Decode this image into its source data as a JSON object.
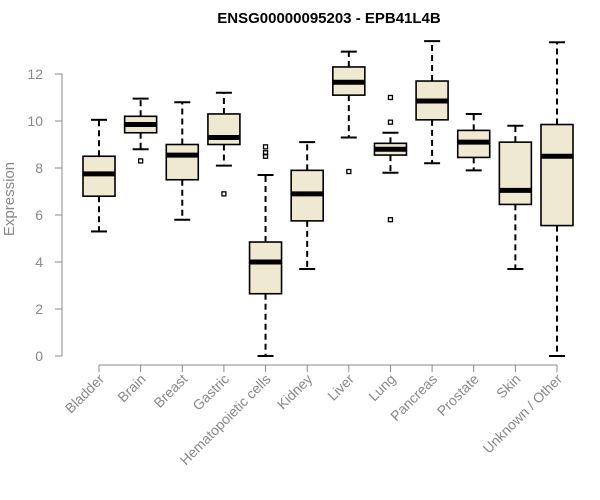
{
  "chart_data": {
    "type": "box",
    "title": "ENSG00000095203 - EPB41L4B",
    "ylabel": "Expression",
    "ylim": [
      0,
      13.5
    ],
    "yticks": [
      0,
      2,
      4,
      6,
      8,
      10,
      12
    ],
    "box_color": "#efe9d2",
    "categories": [
      "Bladder",
      "Brain",
      "Breast",
      "Gastric",
      "Hematopoietic cells",
      "Kidney",
      "Liver",
      "Lung",
      "Pancreas",
      "Prostate",
      "Skin",
      "Unknown / Other"
    ],
    "boxes": [
      {
        "min": 5.3,
        "q1": 6.8,
        "median": 7.75,
        "q3": 8.5,
        "max": 10.05,
        "outliers": []
      },
      {
        "min": 8.8,
        "q1": 9.5,
        "median": 9.85,
        "q3": 10.2,
        "max": 10.95,
        "outliers": [
          8.3
        ]
      },
      {
        "min": 5.8,
        "q1": 7.5,
        "median": 8.55,
        "q3": 9.0,
        "max": 10.8,
        "outliers": []
      },
      {
        "min": 8.1,
        "q1": 9.0,
        "median": 9.3,
        "q3": 10.3,
        "max": 11.2,
        "outliers": [
          6.9
        ]
      },
      {
        "min": 0.0,
        "q1": 2.65,
        "median": 4.0,
        "q3": 4.85,
        "max": 7.7,
        "outliers": [
          8.5,
          8.65,
          8.9
        ]
      },
      {
        "min": 3.7,
        "q1": 5.75,
        "median": 6.9,
        "q3": 7.9,
        "max": 9.1,
        "outliers": []
      },
      {
        "min": 9.3,
        "q1": 11.1,
        "median": 11.65,
        "q3": 12.3,
        "max": 12.95,
        "outliers": [
          7.85
        ]
      },
      {
        "min": 7.8,
        "q1": 8.55,
        "median": 8.8,
        "q3": 9.05,
        "max": 9.5,
        "outliers": [
          5.8,
          9.95,
          11.0
        ]
      },
      {
        "min": 8.2,
        "q1": 10.05,
        "median": 10.85,
        "q3": 11.7,
        "max": 13.4,
        "outliers": []
      },
      {
        "min": 7.9,
        "q1": 8.45,
        "median": 9.1,
        "q3": 9.6,
        "max": 10.3,
        "outliers": []
      },
      {
        "min": 3.7,
        "q1": 6.45,
        "median": 7.05,
        "q3": 9.1,
        "max": 9.8,
        "outliers": []
      },
      {
        "min": 0.0,
        "q1": 5.55,
        "median": 8.5,
        "q3": 9.85,
        "max": 13.35,
        "outliers": []
      }
    ]
  }
}
